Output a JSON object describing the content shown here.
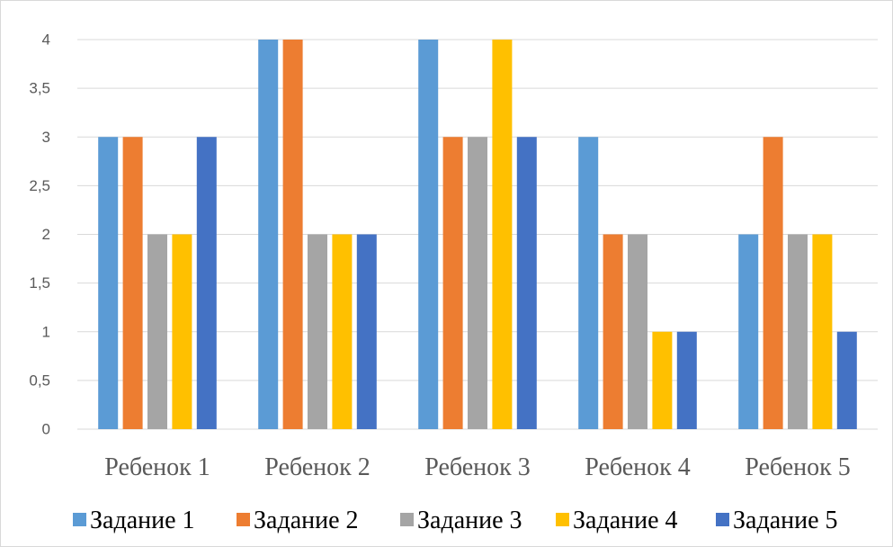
{
  "chart_data": {
    "type": "bar",
    "title": "",
    "xlabel": "",
    "ylabel": "",
    "categories": [
      "Ребенок 1",
      "Ребенок 2",
      "Ребенок 3",
      "Ребенок 4",
      "Ребенок 5"
    ],
    "series": [
      {
        "name": "Задание 1",
        "color": "#5B9BD5",
        "values": [
          3,
          4,
          4,
          3,
          2
        ]
      },
      {
        "name": "Задание 2",
        "color": "#ED7D31",
        "values": [
          3,
          4,
          3,
          2,
          3
        ]
      },
      {
        "name": "Задание 3",
        "color": "#A5A5A5",
        "values": [
          2,
          2,
          3,
          2,
          2
        ]
      },
      {
        "name": "Задание 4",
        "color": "#FFC000",
        "values": [
          2,
          2,
          4,
          1,
          2
        ]
      },
      {
        "name": "Задание 5",
        "color": "#4472C4",
        "values": [
          3,
          2,
          3,
          1,
          1
        ]
      }
    ],
    "ylim": [
      0,
      4
    ],
    "yticks": [
      "0",
      "0,5",
      "1",
      "1,5",
      "2",
      "2,5",
      "3",
      "3,5",
      "4"
    ],
    "grid": true,
    "legend_position": "bottom"
  }
}
